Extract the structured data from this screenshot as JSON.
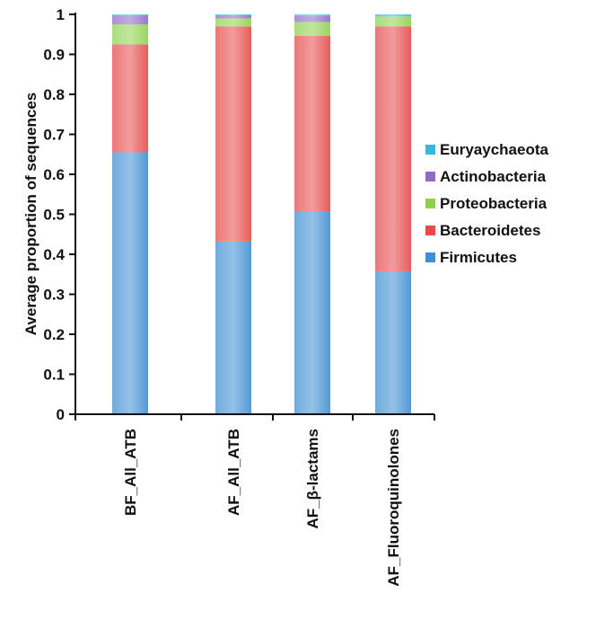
{
  "chart_data": {
    "type": "bar",
    "stacked": true,
    "ylabel": "Average proportion of sequences",
    "xlabel": "",
    "ylim": [
      0,
      1
    ],
    "yticks": [
      "0",
      "0.1",
      "0.2",
      "0.3",
      "0.4",
      "0.5",
      "0.6",
      "0.7",
      "0.8",
      "0.9",
      "1"
    ],
    "categories": [
      "BF_All_ATB",
      "AF_All_ATB",
      "AF_β-lactams",
      "AF_Fluoroquinolones"
    ],
    "legend_position": "right",
    "series": [
      {
        "name": "Firmicutes",
        "color": "#3f8fd2",
        "values": [
          0.655,
          0.432,
          0.506,
          0.357
        ]
      },
      {
        "name": "Bacteroidetes",
        "color": "#e64b4b",
        "values": [
          0.27,
          0.538,
          0.44,
          0.613
        ]
      },
      {
        "name": "Proteobacteria",
        "color": "#8fd14f",
        "values": [
          0.05,
          0.02,
          0.035,
          0.025
        ]
      },
      {
        "name": "Actinobacteria",
        "color": "#8e6bc4",
        "values": [
          0.022,
          0.008,
          0.015,
          0.0
        ]
      },
      {
        "name": "Euryaychaeota",
        "color": "#35b8e0",
        "values": [
          0.003,
          0.002,
          0.004,
          0.005
        ]
      }
    ]
  }
}
